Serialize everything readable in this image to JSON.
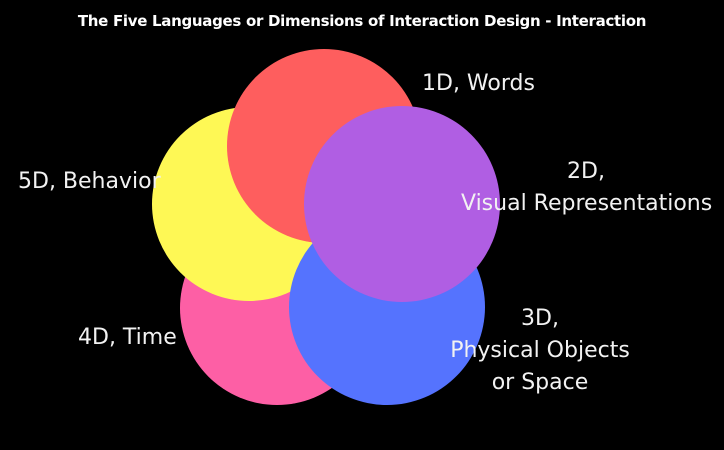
{
  "title": "The Five Languages or Dimensions of Interaction Design - Interaction",
  "dimensions": [
    {
      "id": "1d",
      "lines": [
        "1D, Words"
      ],
      "color": "#fe5e5e"
    },
    {
      "id": "2d",
      "lines": [
        "2D,",
        "Visual Representations"
      ],
      "color": "#b05ee3"
    },
    {
      "id": "3d",
      "lines": [
        "3D,",
        "Physical Objects",
        "or Space"
      ],
      "color": "#5573fe"
    },
    {
      "id": "4d",
      "lines": [
        "4D, Time"
      ],
      "color": "#fd5fa5"
    },
    {
      "id": "5d",
      "lines": [
        "5D, Behavior"
      ],
      "color": "#fef855"
    }
  ]
}
